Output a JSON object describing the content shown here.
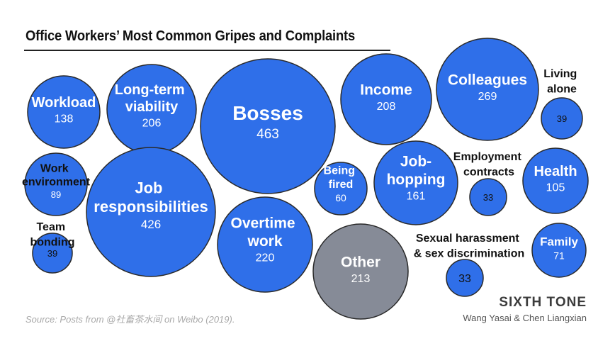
{
  "chart_data": {
    "type": "bubble",
    "title": "Office Workers’ Most Common Gripes and Complaints",
    "source": "Source: Posts from @社畜茶水间 on Weibo (2019).",
    "brand": "SIXTH TONE",
    "credit": "Wang Yasai & Chen Liangxian",
    "colors": {
      "main": "#2f6fe9",
      "other": "#868b97",
      "outline": "#2a2a2a",
      "label_inside": "#ffffff",
      "label_outside": "#111111"
    },
    "items": [
      {
        "label": "Workload",
        "value": 138
      },
      {
        "label": "Long-term viability",
        "value": 206
      },
      {
        "label": "Bosses",
        "value": 463
      },
      {
        "label": "Income",
        "value": 208
      },
      {
        "label": "Colleagues",
        "value": 269
      },
      {
        "label": "Living alone",
        "value": 39
      },
      {
        "label": "Work environment",
        "value": 89
      },
      {
        "label": "Job responsibilities",
        "value": 426
      },
      {
        "label": "Overtime work",
        "value": 220
      },
      {
        "label": "Being fired",
        "value": 60
      },
      {
        "label": "Job-hopping",
        "value": 161
      },
      {
        "label": "Employment contracts",
        "value": 33
      },
      {
        "label": "Health",
        "value": 105
      },
      {
        "label": "Team bonding",
        "value": 39
      },
      {
        "label": "Other",
        "value": 213
      },
      {
        "label": "Sexual harassment & sex discrimination",
        "value": 33
      },
      {
        "label": "Family",
        "value": 71
      }
    ]
  }
}
